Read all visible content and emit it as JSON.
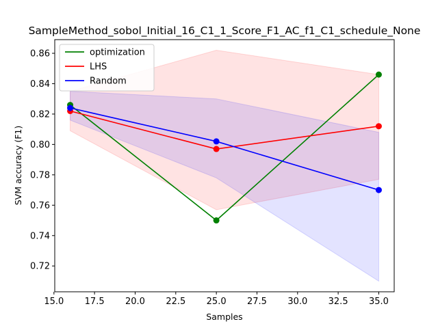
{
  "chart_data": {
    "type": "line",
    "title": "SampleMethod_sobol_Initial_16_C1_1_Score_F1_AC_f1_C1_schedule_None",
    "xlabel": "Samples",
    "ylabel": "SVM accuracy (F1)",
    "x": [
      16,
      25,
      35
    ],
    "xlim": [
      15.05,
      35.95
    ],
    "ylim": [
      0.703,
      0.869
    ],
    "xticks": [
      15.0,
      17.5,
      20.0,
      22.5,
      25.0,
      27.5,
      30.0,
      32.5,
      35.0
    ],
    "xtick_labels": [
      "15.0",
      "17.5",
      "20.0",
      "22.5",
      "25.0",
      "27.5",
      "30.0",
      "32.5",
      "35.0"
    ],
    "yticks": [
      0.72,
      0.74,
      0.76,
      0.78,
      0.8,
      0.82,
      0.84,
      0.86
    ],
    "ytick_labels": [
      "0.72",
      "0.74",
      "0.76",
      "0.78",
      "0.80",
      "0.82",
      "0.84",
      "0.86"
    ],
    "grid": false,
    "legend_position": "top-left",
    "series": [
      {
        "name": "optimization",
        "color": "#008000",
        "values": [
          0.826,
          0.75,
          0.846
        ],
        "band_lower": null,
        "band_upper": null,
        "band_color": null
      },
      {
        "name": "LHS",
        "color": "#ff0000",
        "values": [
          0.822,
          0.797,
          0.812
        ],
        "band_lower": [
          0.809,
          0.757,
          0.777
        ],
        "band_upper": [
          0.835,
          0.862,
          0.846
        ],
        "band_color": "#ff0000"
      },
      {
        "name": "Random",
        "color": "#0000ff",
        "values": [
          0.824,
          0.802,
          0.77
        ],
        "band_lower": [
          0.816,
          0.778,
          0.71
        ],
        "band_upper": [
          0.835,
          0.83,
          0.808
        ],
        "band_color": "#0000ff"
      }
    ]
  }
}
